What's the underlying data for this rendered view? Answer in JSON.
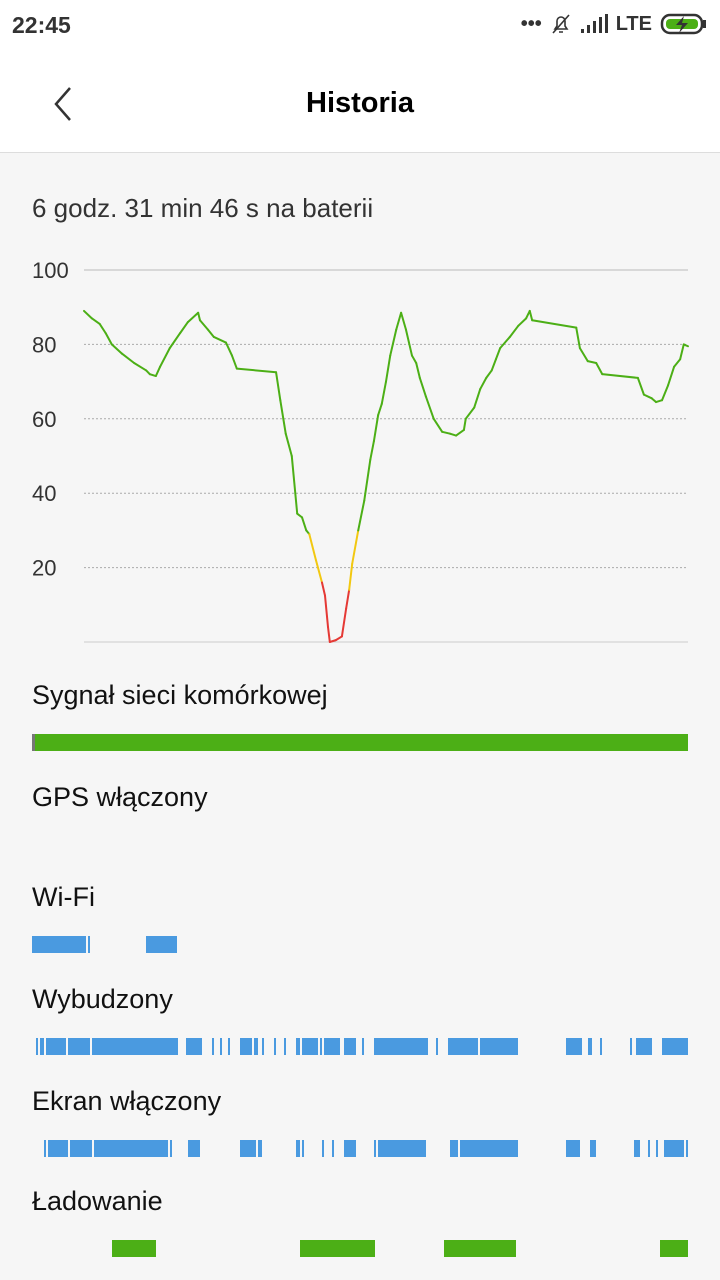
{
  "status_bar": {
    "time": "22:45",
    "network": "LTE",
    "icons": [
      "more-dots-icon",
      "bell-muted-icon",
      "signal-icon",
      "battery-charging-icon"
    ]
  },
  "header": {
    "title": "Historia",
    "back_icon": "chevron-left-icon"
  },
  "duration": "6 godz. 31 min 46 s na baterii",
  "chart_data": {
    "type": "line",
    "ylim": [
      0,
      100
    ],
    "yticks": [
      "100",
      "80",
      "60",
      "40",
      "20"
    ],
    "grid": true,
    "x_unit": "percent of session time",
    "colors": {
      "normal": "#4caf16",
      "low": "#f2c811",
      "critical": "#e53935"
    },
    "points": [
      [
        0,
        89
      ],
      [
        1.3,
        87
      ],
      [
        2.6,
        85.5
      ],
      [
        3.6,
        83
      ],
      [
        4.6,
        80
      ],
      [
        6.3,
        77.5
      ],
      [
        8.3,
        75
      ],
      [
        10.3,
        73
      ],
      [
        10.9,
        72
      ],
      [
        11.9,
        71.5
      ],
      [
        12.6,
        74
      ],
      [
        14.2,
        79
      ],
      [
        15.9,
        83
      ],
      [
        17.2,
        86
      ],
      [
        18.9,
        88.5
      ],
      [
        19.2,
        86.5
      ],
      [
        20.5,
        84
      ],
      [
        21.5,
        82
      ],
      [
        23.5,
        80.5
      ],
      [
        24.5,
        77
      ],
      [
        25.3,
        73.5
      ],
      [
        31.8,
        72.5
      ],
      [
        32.5,
        65
      ],
      [
        33.4,
        56
      ],
      [
        34.4,
        50
      ],
      [
        35.3,
        34.5
      ],
      [
        36.1,
        33.5
      ],
      [
        36.8,
        30
      ],
      [
        37.3,
        29
      ],
      [
        38.4,
        22
      ],
      [
        39.4,
        16
      ],
      [
        39.9,
        12.5
      ],
      [
        40.4,
        4
      ],
      [
        40.7,
        0
      ],
      [
        41.7,
        0.5
      ],
      [
        42.7,
        1.5
      ],
      [
        43.4,
        9
      ],
      [
        43.9,
        14
      ],
      [
        44.4,
        21
      ],
      [
        45.4,
        30
      ],
      [
        46.4,
        38
      ],
      [
        47.4,
        49
      ],
      [
        48,
        54
      ],
      [
        48.7,
        61
      ],
      [
        49.3,
        64
      ],
      [
        50,
        70
      ],
      [
        50.7,
        77
      ],
      [
        51.7,
        84
      ],
      [
        52.5,
        88.5
      ],
      [
        53.3,
        84
      ],
      [
        54.3,
        77
      ],
      [
        55,
        75
      ],
      [
        55.6,
        71
      ],
      [
        56.6,
        66
      ],
      [
        57.9,
        60
      ],
      [
        59.3,
        56.5
      ],
      [
        60.6,
        56
      ],
      [
        61.6,
        55.5
      ],
      [
        62.9,
        57
      ],
      [
        63.2,
        60
      ],
      [
        64.6,
        63
      ],
      [
        65.6,
        68
      ],
      [
        66.6,
        71
      ],
      [
        67.5,
        73
      ],
      [
        68.2,
        76
      ],
      [
        68.9,
        79
      ],
      [
        70.5,
        82
      ],
      [
        71.9,
        85
      ],
      [
        73.2,
        87
      ],
      [
        73.8,
        89
      ],
      [
        74.2,
        86.5
      ],
      [
        81.5,
        84.5
      ],
      [
        82.1,
        79
      ],
      [
        83.4,
        75.5
      ],
      [
        84.8,
        75
      ],
      [
        85.8,
        72
      ],
      [
        91.7,
        71
      ],
      [
        92.7,
        66.5
      ],
      [
        94,
        65.5
      ],
      [
        94.7,
        64.5
      ],
      [
        95.7,
        65
      ],
      [
        96.7,
        69
      ],
      [
        97.7,
        74
      ],
      [
        98.7,
        76
      ],
      [
        99.3,
        80
      ],
      [
        100,
        79.5
      ]
    ]
  },
  "rows": [
    {
      "label": "Sygnał sieci komórkowej",
      "color": "#4caf16",
      "segments": [
        [
          0,
          0.5,
          "#777777"
        ],
        [
          0.5,
          100
        ]
      ]
    },
    {
      "label": "GPS włączony",
      "color": "#4a9ae0",
      "segments": []
    },
    {
      "label": "Wi-Fi",
      "color": "#4a9ae0",
      "segments": [
        [
          0,
          8.2
        ],
        [
          8.5,
          8.8
        ],
        [
          17.4,
          22.1
        ]
      ]
    },
    {
      "label": "Wybudzony",
      "color": "#4a9ae0",
      "segments": [
        [
          0.6,
          0.9
        ],
        [
          1.2,
          1.8
        ],
        [
          2.1,
          5.2
        ],
        [
          5.5,
          8.8
        ],
        [
          9.1,
          22.3
        ],
        [
          23.5,
          25.9
        ],
        [
          27.4,
          27.7
        ],
        [
          28.7,
          29
        ],
        [
          29.9,
          30.2
        ],
        [
          31.7,
          33.5
        ],
        [
          33.8,
          34.5
        ],
        [
          35.1,
          35.4
        ],
        [
          36.9,
          37.2
        ],
        [
          38.4,
          38.7
        ],
        [
          40.2,
          40.9
        ],
        [
          41.2,
          43.6
        ],
        [
          43.9,
          44.2
        ],
        [
          44.5,
          47
        ],
        [
          47.6,
          49.4
        ],
        [
          50.3,
          50.6
        ],
        [
          52.1,
          60.4
        ],
        [
          61.6,
          61.9
        ],
        [
          63.4,
          68
        ],
        [
          68.3,
          74.1
        ],
        [
          81.4,
          83.8
        ],
        [
          84.8,
          85.4
        ],
        [
          86.6,
          86.9
        ],
        [
          91.2,
          91.5
        ],
        [
          92.1,
          94.5
        ],
        [
          96,
          100
        ]
      ]
    },
    {
      "label": "Ekran włączony",
      "color": "#4a9ae0",
      "segments": [
        [
          1.8,
          2.1
        ],
        [
          2.4,
          5.5
        ],
        [
          5.8,
          9.1
        ],
        [
          9.5,
          20.7
        ],
        [
          21,
          21.3
        ],
        [
          23.8,
          25.6
        ],
        [
          31.7,
          34.1
        ],
        [
          34.5,
          35.1
        ],
        [
          40.2,
          40.9
        ],
        [
          41.2,
          41.5
        ],
        [
          44.2,
          44.5
        ],
        [
          45.7,
          46
        ],
        [
          47.6,
          49.4
        ],
        [
          52.1,
          52.4
        ],
        [
          52.7,
          60.1
        ],
        [
          63.7,
          64.9
        ],
        [
          65.2,
          74.1
        ],
        [
          81.4,
          83.5
        ],
        [
          85.1,
          86
        ],
        [
          91.8,
          92.7
        ],
        [
          93.9,
          94.2
        ],
        [
          95.1,
          95.4
        ],
        [
          96.3,
          99.4
        ],
        [
          99.7,
          100
        ]
      ]
    },
    {
      "label": "Ładowanie",
      "color": "#4caf16",
      "segments": [
        [
          12.2,
          18.9
        ],
        [
          40.9,
          52.3
        ],
        [
          62.8,
          73.8
        ],
        [
          95.7,
          100
        ]
      ]
    }
  ]
}
